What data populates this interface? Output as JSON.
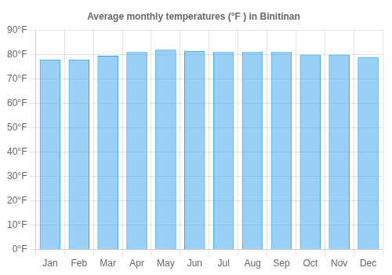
{
  "chart_data": {
    "type": "bar",
    "title": "Average monthly temperatures (°F ) in Binitinan",
    "categories": [
      "Jan",
      "Feb",
      "Mar",
      "Apr",
      "May",
      "Jun",
      "Jul",
      "Aug",
      "Sep",
      "Oct",
      "Nov",
      "Dec"
    ],
    "values": [
      78,
      78,
      79.5,
      81,
      82,
      81.5,
      81,
      81,
      81,
      80,
      80,
      79
    ],
    "ylim": [
      0,
      90
    ],
    "yticks": [
      {
        "value": 0,
        "label": "0°F"
      },
      {
        "value": 10,
        "label": "10°F"
      },
      {
        "value": 20,
        "label": "20°F"
      },
      {
        "value": 30,
        "label": "30°F"
      },
      {
        "value": 40,
        "label": "40°F"
      },
      {
        "value": 50,
        "label": "50°F"
      },
      {
        "value": 60,
        "label": "60°F"
      },
      {
        "value": 70,
        "label": "70°F"
      },
      {
        "value": 80,
        "label": "80°F"
      },
      {
        "value": 90,
        "label": "90°F"
      }
    ],
    "grid": true
  }
}
